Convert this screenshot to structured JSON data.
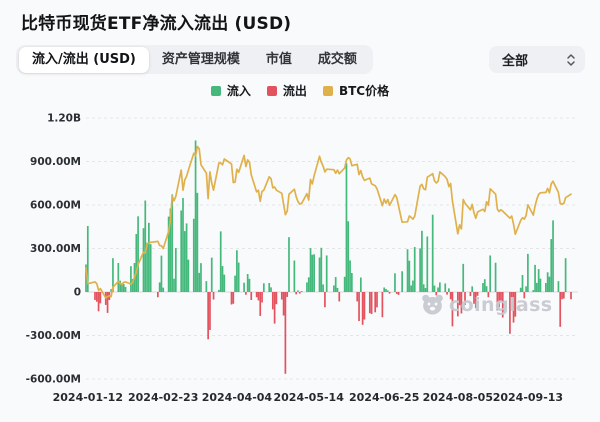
{
  "header": {
    "title": "比特币现货ETF净流入流出 (USD)"
  },
  "tabs": [
    {
      "label": "流入/流出 (USD)",
      "active": true
    },
    {
      "label": "资产管理规模",
      "active": false
    },
    {
      "label": "市值",
      "active": false
    },
    {
      "label": "成交额",
      "active": false
    }
  ],
  "filter": {
    "value": "全部"
  },
  "legend": [
    {
      "label": "流入",
      "color": "#45b87c"
    },
    {
      "label": "流出",
      "color": "#e2525f"
    },
    {
      "label": "BTC价格",
      "color": "#e0b14b"
    }
  ],
  "watermark": {
    "text": "coinglass"
  },
  "chart_data": {
    "type": "bar+line",
    "title": "比特币现货ETF净流入流出 (USD)",
    "unit": "USD",
    "grid": "dashed-horizontal",
    "ylim_musd": [
      -600,
      1200
    ],
    "y_axis": {
      "ticks": [
        {
          "label": "1.20B",
          "value": 1200
        },
        {
          "label": "900.00M",
          "value": 900
        },
        {
          "label": "600.00M",
          "value": 600
        },
        {
          "label": "300.00M",
          "value": 300
        },
        {
          "label": "0",
          "value": 0
        },
        {
          "label": "-300.00M",
          "value": -300
        },
        {
          "label": "-600.00M",
          "value": -600
        }
      ]
    },
    "x_ticks": [
      "2024-01-12",
      "2024-02-23",
      "2024-04-04",
      "2024-05-14",
      "2024-06-25",
      "2024-08-05",
      "2024-09-13"
    ],
    "price_axis_usd": {
      "min": 21400,
      "max": 80000,
      "hidden": true
    },
    "dates": [
      "2024-01-11",
      "2024-01-12",
      "2024-01-16",
      "2024-01-17",
      "2024-01-18",
      "2024-01-19",
      "2024-01-22",
      "2024-01-23",
      "2024-01-24",
      "2024-01-25",
      "2024-01-26",
      "2024-01-29",
      "2024-01-30",
      "2024-01-31",
      "2024-02-01",
      "2024-02-02",
      "2024-02-05",
      "2024-02-06",
      "2024-02-07",
      "2024-02-08",
      "2024-02-09",
      "2024-02-12",
      "2024-02-13",
      "2024-02-14",
      "2024-02-15",
      "2024-02-16",
      "2024-02-20",
      "2024-02-21",
      "2024-02-22",
      "2024-02-23",
      "2024-02-26",
      "2024-02-27",
      "2024-02-28",
      "2024-02-29",
      "2024-03-01",
      "2024-03-04",
      "2024-03-05",
      "2024-03-06",
      "2024-03-07",
      "2024-03-08",
      "2024-03-11",
      "2024-03-12",
      "2024-03-13",
      "2024-03-14",
      "2024-03-15",
      "2024-03-18",
      "2024-03-19",
      "2024-03-20",
      "2024-03-21",
      "2024-03-22",
      "2024-03-25",
      "2024-03-26",
      "2024-03-27",
      "2024-03-28",
      "2024-04-01",
      "2024-04-02",
      "2024-04-03",
      "2024-04-04",
      "2024-04-05",
      "2024-04-08",
      "2024-04-09",
      "2024-04-10",
      "2024-04-11",
      "2024-04-12",
      "2024-04-15",
      "2024-04-16",
      "2024-04-17",
      "2024-04-18",
      "2024-04-19",
      "2024-04-22",
      "2024-04-23",
      "2024-04-24",
      "2024-04-25",
      "2024-04-26",
      "2024-04-29",
      "2024-04-30",
      "2024-05-01",
      "2024-05-02",
      "2024-05-03",
      "2024-05-06",
      "2024-05-07",
      "2024-05-08",
      "2024-05-09",
      "2024-05-10",
      "2024-05-13",
      "2024-05-14",
      "2024-05-15",
      "2024-05-16",
      "2024-05-17",
      "2024-05-20",
      "2024-05-21",
      "2024-05-22",
      "2024-05-23",
      "2024-05-24",
      "2024-05-28",
      "2024-05-29",
      "2024-05-30",
      "2024-05-31",
      "2024-06-03",
      "2024-06-04",
      "2024-06-05",
      "2024-06-06",
      "2024-06-07",
      "2024-06-10",
      "2024-06-11",
      "2024-06-12",
      "2024-06-13",
      "2024-06-14",
      "2024-06-17",
      "2024-06-18",
      "2024-06-20",
      "2024-06-21",
      "2024-06-24",
      "2024-06-25",
      "2024-06-26",
      "2024-06-27",
      "2024-06-28",
      "2024-07-01",
      "2024-07-02",
      "2024-07-03",
      "2024-07-05",
      "2024-07-08",
      "2024-07-09",
      "2024-07-10",
      "2024-07-11",
      "2024-07-12",
      "2024-07-15",
      "2024-07-16",
      "2024-07-17",
      "2024-07-18",
      "2024-07-19",
      "2024-07-22",
      "2024-07-23",
      "2024-07-24",
      "2024-07-25",
      "2024-07-26",
      "2024-07-29",
      "2024-07-30",
      "2024-07-31",
      "2024-08-01",
      "2024-08-02",
      "2024-08-05",
      "2024-08-06",
      "2024-08-07",
      "2024-08-08",
      "2024-08-09",
      "2024-08-12",
      "2024-08-13",
      "2024-08-14",
      "2024-08-15",
      "2024-08-16",
      "2024-08-19",
      "2024-08-20",
      "2024-08-21",
      "2024-08-22",
      "2024-08-23",
      "2024-08-26",
      "2024-08-27",
      "2024-08-28",
      "2024-08-29",
      "2024-08-30",
      "2024-09-03",
      "2024-09-04",
      "2024-09-05",
      "2024-09-06",
      "2024-09-09",
      "2024-09-10",
      "2024-09-11",
      "2024-09-12",
      "2024-09-13",
      "2024-09-16",
      "2024-09-17",
      "2024-09-18",
      "2024-09-19",
      "2024-09-20",
      "2024-09-23",
      "2024-09-24",
      "2024-09-25",
      "2024-09-26",
      "2024-09-27",
      "2024-09-30",
      "2024-10-01",
      "2024-10-02",
      "2024-10-03",
      "2024-10-04",
      "2024-10-07"
    ],
    "series": [
      {
        "name": "净流入流出",
        "kind": "bar",
        "unit": "M USD",
        "color_positive": "#45b87c",
        "color_negative": "#e2525f",
        "values_musd": [
          190,
          455,
          -55,
          -67,
          -133,
          -78,
          -89,
          -144,
          -55,
          20,
          233,
          200,
          78,
          60,
          55,
          35,
          178,
          90,
          200,
          400,
          522,
          440,
          631,
          340,
          477,
          330,
          -36,
          66,
          251,
          30,
          520,
          576,
          673,
          92,
          303,
          562,
          648,
          420,
          473,
          223,
          505,
          1045,
          684,
          132,
          199,
          75,
          -326,
          -262,
          237,
          -52,
          15,
          418,
          179,
          120,
          -86,
          -81,
          113,
          288,
          203,
          64,
          -19,
          124,
          91,
          -55,
          -36,
          -58,
          -165,
          -72,
          60,
          62,
          32,
          -120,
          -218,
          -84,
          -52,
          -162,
          -564,
          -34,
          378,
          217,
          -16,
          11,
          -11,
          3,
          66,
          101,
          303,
          257,
          260,
          238,
          305,
          52,
          -105,
          252,
          45,
          103,
          28,
          -65,
          105,
          887,
          488,
          218,
          131,
          -65,
          -200,
          100,
          -226,
          -190,
          -146,
          -152,
          -140,
          -106,
          -174,
          31,
          21,
          11,
          -11,
          129,
          -13,
          -20,
          143,
          295,
          216,
          45,
          79,
          310,
          301,
          422,
          53,
          27,
          383,
          533,
          44,
          -23,
          31,
          66,
          59,
          -18,
          25,
          -50,
          -237,
          -168,
          -91,
          -148,
          194,
          -89,
          -28,
          39,
          -81,
          -111,
          -26,
          62,
          88,
          40,
          -36,
          252,
          202,
          -127,
          -105,
          -71,
          -176,
          -288,
          -38,
          -211,
          -170,
          29,
          117,
          -44,
          39,
          263,
          13,
          187,
          63,
          158,
          92,
          62,
          136,
          106,
          365,
          494,
          75,
          -240,
          -50,
          -45,
          233,
          -50
        ]
      },
      {
        "name": "BTC价格",
        "kind": "line",
        "unit": "k USD",
        "color": "#e0b14b",
        "values_kusd": [
          46.3,
          42.8,
          43.2,
          42.8,
          41.3,
          41.7,
          39.6,
          39.9,
          40.1,
          39.9,
          42.0,
          43.3,
          42.9,
          42.6,
          43.1,
          43.2,
          42.7,
          43.1,
          44.3,
          45.3,
          47.1,
          49.9,
          49.7,
          51.8,
          51.9,
          52.1,
          52.3,
          51.4,
          51.3,
          50.7,
          54.5,
          57.0,
          62.5,
          61.4,
          62.4,
          68.3,
          63.8,
          66.1,
          66.9,
          68.3,
          72.1,
          71.5,
          73.6,
          73.1,
          69.5,
          67.6,
          61.9,
          67.9,
          65.5,
          63.8,
          69.9,
          69.9,
          69.5,
          70.8,
          69.7,
          65.5,
          65.6,
          68.5,
          67.8,
          71.6,
          69.1,
          70.6,
          70.0,
          67.2,
          63.4,
          63.8,
          61.3,
          63.5,
          63.8,
          66.8,
          66.4,
          64.3,
          64.5,
          63.8,
          63.1,
          60.6,
          58.3,
          59.1,
          62.9,
          64.0,
          62.3,
          61.2,
          60.7,
          60.8,
          63.0,
          61.6,
          66.2,
          65.2,
          67.0,
          71.4,
          70.1,
          69.2,
          67.9,
          68.5,
          68.4,
          67.6,
          68.3,
          67.5,
          68.8,
          70.6,
          71.1,
          70.8,
          69.3,
          69.6,
          67.3,
          68.2,
          66.8,
          66.0,
          66.5,
          65.2,
          64.8,
          64.1,
          60.3,
          61.8,
          60.9,
          61.7,
          60.4,
          62.8,
          62.1,
          60.2,
          56.6,
          56.7,
          58.0,
          57.7,
          57.3,
          57.9,
          64.7,
          65.1,
          64.1,
          63.9,
          66.7,
          67.5,
          65.9,
          65.4,
          65.8,
          67.9,
          66.8,
          66.2,
          64.6,
          65.3,
          61.4,
          54.0,
          56.0,
          55.1,
          61.7,
          60.9,
          59.4,
          60.6,
          58.7,
          57.5,
          58.9,
          59.5,
          59.0,
          61.2,
          60.4,
          64.1,
          62.9,
          59.5,
          59.0,
          59.4,
          59.1,
          57.5,
          58.0,
          56.2,
          53.9,
          57.0,
          57.6,
          57.3,
          58.1,
          60.5,
          58.2,
          60.3,
          61.8,
          62.9,
          63.2,
          63.3,
          64.2,
          63.2,
          65.2,
          65.8,
          63.3,
          60.8,
          60.7,
          60.8,
          62.1,
          62.9
        ]
      }
    ]
  }
}
